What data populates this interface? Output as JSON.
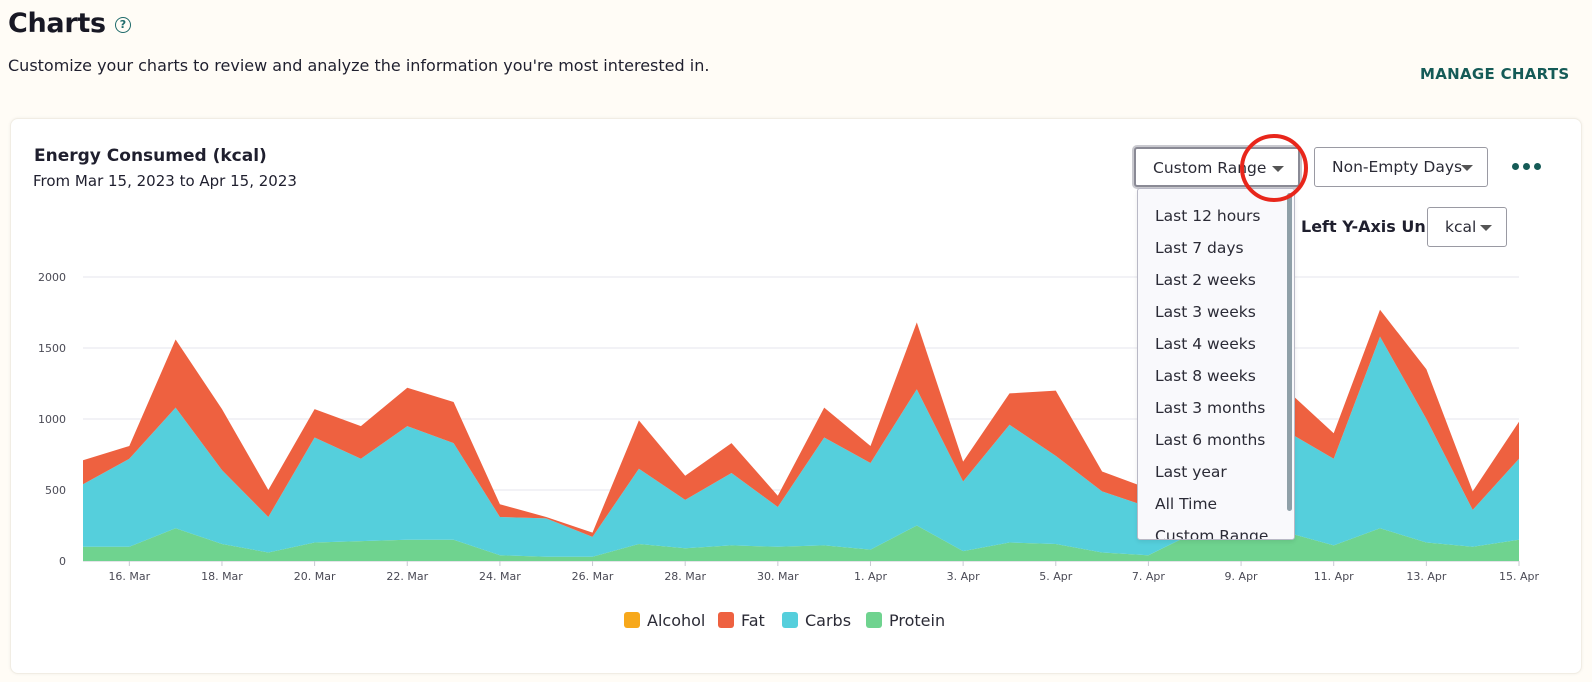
{
  "header": {
    "title": "Charts",
    "help_icon": "question-circle-icon",
    "subtitle": "Customize your charts to review and analyze the information you're most interested in.",
    "manage_label": "MANAGE CHARTS"
  },
  "card": {
    "title": "Energy Consumed (kcal)",
    "range_text": "From Mar 15, 2023 to Apr 15, 2023",
    "range_select": "Custom Range",
    "days_select": "Non-Empty Days",
    "more_icon": "more-horizontal-icon",
    "unit_label": "Left Y-Axis Unit",
    "unit_select": "kcal"
  },
  "dropdown": {
    "options": [
      "Last 12 hours",
      "Last 7 days",
      "Last 2 weeks",
      "Last 3 weeks",
      "Last 4 weeks",
      "Last 8 weeks",
      "Last 3 months",
      "Last 6 months",
      "Last year",
      "All Time",
      "Custom Range"
    ]
  },
  "colors": {
    "alcohol": "#f7a81b",
    "fat": "#ee6140",
    "carbs": "#55cfdc",
    "protein": "#6fd38f",
    "accent": "#155b57",
    "annotation": "#e8261b"
  },
  "chart_data": {
    "type": "area",
    "stacked": true,
    "x": [
      "Mar 15",
      "Mar 16",
      "Mar 17",
      "Mar 18",
      "Mar 19",
      "Mar 20",
      "Mar 21",
      "Mar 22",
      "Mar 23",
      "Mar 24",
      "Mar 25",
      "Mar 26",
      "Mar 27",
      "Mar 28",
      "Mar 29",
      "Mar 30",
      "Mar 31",
      "Apr 1",
      "Apr 2",
      "Apr 3",
      "Apr 4",
      "Apr 5",
      "Apr 6",
      "Apr 7",
      "Apr 8",
      "Apr 9",
      "Apr 10",
      "Apr 11",
      "Apr 12",
      "Apr 13",
      "Apr 14",
      "Apr 15"
    ],
    "x_tick_labels": [
      "16. Mar",
      "18. Mar",
      "20. Mar",
      "22. Mar",
      "24. Mar",
      "26. Mar",
      "28. Mar",
      "30. Mar",
      "1. Apr",
      "3. Apr",
      "5. Apr",
      "7. Apr",
      "9. Apr",
      "11. Apr",
      "13. Apr",
      "15. Apr"
    ],
    "y_ticks": [
      0,
      500,
      1000,
      1500,
      2000
    ],
    "ylim": [
      0,
      2000
    ],
    "grid": true,
    "legend_position": "bottom-center",
    "series": [
      {
        "name": "Alcohol",
        "color": "#f7a81b",
        "values": [
          0,
          0,
          0,
          0,
          0,
          0,
          0,
          0,
          0,
          0,
          0,
          0,
          0,
          0,
          0,
          0,
          0,
          0,
          0,
          0,
          0,
          0,
          0,
          0,
          0,
          0,
          0,
          0,
          0,
          0,
          0,
          0
        ]
      },
      {
        "name": "Fat",
        "color": "#ee6140",
        "values": [
          170,
          90,
          480,
          430,
          190,
          200,
          230,
          270,
          290,
          90,
          10,
          30,
          340,
          170,
          210,
          80,
          210,
          120,
          470,
          140,
          220,
          460,
          140,
          130,
          420,
          370,
          290,
          180,
          190,
          350,
          130,
          260
        ]
      },
      {
        "name": "Carbs",
        "color": "#55cfdc",
        "values": [
          440,
          620,
          850,
          520,
          250,
          740,
          580,
          800,
          680,
          270,
          270,
          140,
          530,
          340,
          510,
          280,
          760,
          610,
          960,
          490,
          830,
          620,
          430,
          340,
          740,
          720,
          710,
          610,
          1350,
          870,
          260,
          570
        ]
      },
      {
        "name": "Protein",
        "color": "#6fd38f",
        "values": [
          100,
          100,
          230,
          120,
          60,
          130,
          140,
          150,
          150,
          40,
          30,
          30,
          120,
          90,
          110,
          100,
          110,
          80,
          250,
          70,
          130,
          120,
          60,
          40,
          200,
          220,
          200,
          110,
          230,
          130,
          100,
          150
        ]
      }
    ]
  }
}
